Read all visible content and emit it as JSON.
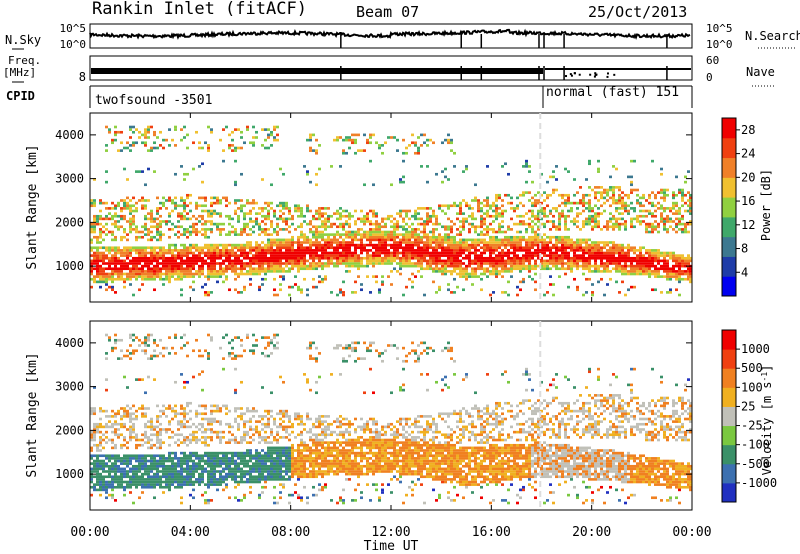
{
  "chart_data": {
    "type": "heatmap",
    "header": {
      "title": "Rankin Inlet (fitACF)",
      "beam": "Beam 07",
      "date": "25/Oct/2013"
    },
    "x_axis": {
      "label": "Time UT",
      "ticks": [
        "00:00",
        "04:00",
        "08:00",
        "12:00",
        "16:00",
        "20:00",
        "00:00"
      ],
      "range_hours": [
        0,
        24
      ]
    },
    "noise_panel": {
      "left_label": "N.Sky",
      "right_label": "N.Search",
      "left_ticks": [
        "10^5",
        "10^0"
      ],
      "right_ticks": [
        "10^5",
        "10^0"
      ]
    },
    "freq_panel": {
      "left_label_line1": "Freq.",
      "left_label_line2": "[MHz]",
      "left_ticks": [
        "8"
      ],
      "right_label": "Nave",
      "right_ticks": [
        "60",
        "0"
      ]
    },
    "cpid_panel": {
      "label": "CPID",
      "segments": [
        {
          "name": "twofsound",
          "id": "-3501",
          "start_h": 0,
          "end_h": 18.1
        },
        {
          "name": "normal (fast)",
          "id": "151",
          "start_h": 18.1,
          "end_h": 24
        }
      ],
      "segment_labels": [
        "twofsound  -3501",
        "normal (fast) 151"
      ]
    },
    "scan_gaps_hours": [
      10.0,
      14.8,
      15.6,
      17.9,
      18.1,
      18.9,
      23.0
    ],
    "power_panel": {
      "ylabel": "Slant Range [km]",
      "yticks": [
        1000,
        2000,
        3000,
        4000
      ],
      "ylim": [
        180,
        4500
      ],
      "colorbar_label": "Power [dB]",
      "colorbar_ticks": [
        4,
        8,
        12,
        16,
        20,
        24,
        28
      ],
      "colorbar_range": [
        0,
        30
      ],
      "colorbar_colors": [
        "#0000f0",
        "#1e3ca8",
        "#3c7890",
        "#3fa86a",
        "#90d040",
        "#f0c030",
        "#f08028",
        "#f04010",
        "#f00000"
      ]
    },
    "velocity_panel": {
      "ylabel": "Slant Range [km]",
      "yticks": [
        1000,
        2000,
        3000,
        4000
      ],
      "ylim": [
        180,
        4500
      ],
      "colorbar_label": "Velocity [m s^-1]",
      "colorbar_ticks": [
        "1000",
        "500",
        "100",
        "25",
        "-25",
        "-100",
        "-500",
        "-1000"
      ],
      "colorbar_colors": [
        "#2030c0",
        "#3c70b0",
        "#3a9068",
        "#7ac840",
        "#c0c0b8",
        "#f0b020",
        "#f08020",
        "#f04010",
        "#f00000"
      ]
    },
    "features": {
      "main_band": [
        {
          "t": 0,
          "lo": 600,
          "hi": 1400
        },
        {
          "t": 3,
          "lo": 650,
          "hi": 1450
        },
        {
          "t": 6,
          "lo": 750,
          "hi": 1500
        },
        {
          "t": 9,
          "lo": 900,
          "hi": 1700
        },
        {
          "t": 12,
          "lo": 1000,
          "hi": 1800
        },
        {
          "t": 15,
          "lo": 700,
          "hi": 1600
        },
        {
          "t": 18,
          "lo": 900,
          "hi": 1700
        },
        {
          "t": 21,
          "lo": 800,
          "hi": 1500
        },
        {
          "t": 24,
          "lo": 600,
          "hi": 1200
        }
      ],
      "upper_band": [
        {
          "t": 0,
          "lo": 1500,
          "hi": 2500
        },
        {
          "t": 4,
          "lo": 1600,
          "hi": 2600
        },
        {
          "t": 8,
          "lo": 1700,
          "hi": 2400
        },
        {
          "t": 12,
          "lo": 1500,
          "hi": 2200
        },
        {
          "t": 16,
          "lo": 1700,
          "hi": 2600
        },
        {
          "t": 20,
          "lo": 1800,
          "hi": 2800
        },
        {
          "t": 24,
          "lo": 1700,
          "hi": 2700
        }
      ],
      "high_echoes": [
        {
          "t0": 0.5,
          "t1": 7.5,
          "lo": 3600,
          "hi": 4200
        },
        {
          "t0": 8.5,
          "t1": 14.5,
          "lo": 3500,
          "hi": 4000
        }
      ]
    }
  }
}
